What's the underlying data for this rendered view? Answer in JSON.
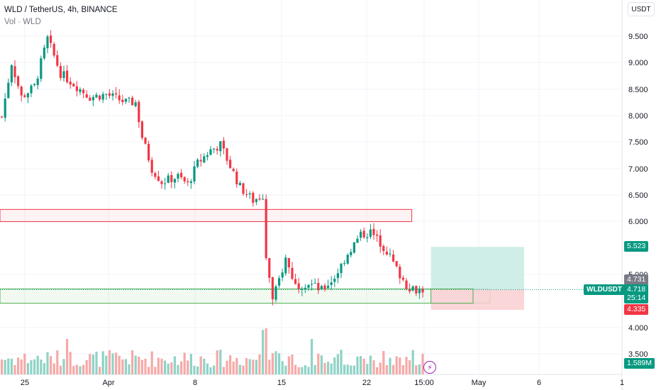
{
  "header": {
    "symbol_line": "WLD / TetherUS, 4h, BINANCE",
    "volume_line": "Vol · WLD",
    "currency_button": "USDT"
  },
  "price_tags": {
    "take_profit": "5.523",
    "last_close": "4.731",
    "current_price": "4.718",
    "countdown": "25:14",
    "stop_loss": "4.335",
    "volume_value": "1.589M",
    "ticker": "WLDUSDT"
  },
  "colors": {
    "up": "#089981",
    "down": "#f23645",
    "up_volume": "#8fd3c6",
    "down_volume": "#f7a9a7",
    "zone_red": "#f23645",
    "zone_green": "#4caf50",
    "profit_fill": "#c8ebe4",
    "loss_fill": "#f9cfd2",
    "last_tag": "#787b86"
  },
  "chart_data": {
    "type": "candlestick",
    "y_ticks": [
      "9.500",
      "9.000",
      "8.500",
      "8.000",
      "7.500",
      "7.000",
      "6.500",
      "6.000",
      "5.000",
      "4.000",
      "3.500"
    ],
    "x_ticks": [
      "25",
      "Apr",
      "8",
      "15",
      "22",
      "15:00",
      "May",
      "6",
      "1"
    ],
    "ylim": [
      3.3,
      9.85
    ],
    "price_path": [
      [
        0,
        7.98
      ],
      [
        3,
        9.0
      ],
      [
        6,
        8.35
      ],
      [
        10,
        8.55
      ],
      [
        14,
        9.45
      ],
      [
        18,
        8.8
      ],
      [
        22,
        8.6
      ],
      [
        27,
        8.35
      ],
      [
        32,
        8.4
      ],
      [
        38,
        8.25
      ],
      [
        41,
        8.25
      ],
      [
        43,
        7.6
      ],
      [
        46,
        7.0
      ],
      [
        49,
        6.75
      ],
      [
        54,
        6.85
      ],
      [
        57,
        6.7
      ],
      [
        60,
        7.1
      ],
      [
        64,
        7.35
      ],
      [
        67,
        7.45
      ],
      [
        70,
        7.05
      ],
      [
        73,
        6.65
      ],
      [
        77,
        6.4
      ],
      [
        80,
        6.5
      ],
      [
        81,
        5.4
      ],
      [
        83,
        4.5
      ],
      [
        85,
        4.9
      ],
      [
        87,
        5.3
      ],
      [
        90,
        4.8
      ],
      [
        94,
        4.85
      ],
      [
        98,
        4.7
      ],
      [
        102,
        4.95
      ],
      [
        106,
        5.4
      ],
      [
        110,
        5.75
      ],
      [
        113,
        5.8
      ],
      [
        116,
        5.6
      ],
      [
        118,
        5.45
      ],
      [
        121,
        5.1
      ],
      [
        124,
        4.8
      ],
      [
        127,
        4.72
      ],
      [
        129,
        4.72
      ]
    ],
    "zones": [
      {
        "kind": "resistance",
        "y_top": 6.23,
        "y_bottom": 6.0,
        "x_end": 126
      },
      {
        "kind": "support",
        "y_top": 4.73,
        "y_bottom": 4.46,
        "x_end": 150
      }
    ],
    "position": {
      "entry": 4.718,
      "take_profit": 5.523,
      "stop_loss": 4.335,
      "x_start": 136,
      "x_end": 166
    }
  }
}
